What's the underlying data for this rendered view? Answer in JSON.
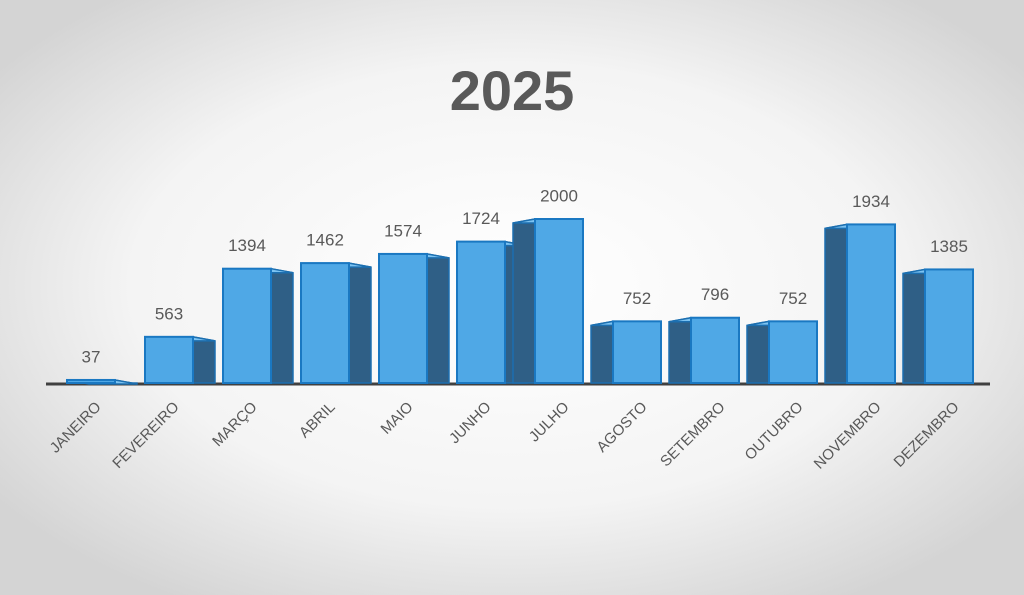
{
  "chart_data": {
    "type": "bar",
    "title": "2025",
    "categories": [
      "JANEIRO",
      "FEVEREIRO",
      "MARÇO",
      "ABRIL",
      "MAIO",
      "JUNHO",
      "JULHO",
      "AGOSTO",
      "SETEMBRO",
      "OUTUBRO",
      "NOVEMBRO",
      "DEZEMBRO"
    ],
    "values": [
      37,
      563,
      1394,
      1462,
      1574,
      1724,
      2000,
      752,
      796,
      752,
      1934,
      1385
    ],
    "color": "#4fa8e6"
  }
}
